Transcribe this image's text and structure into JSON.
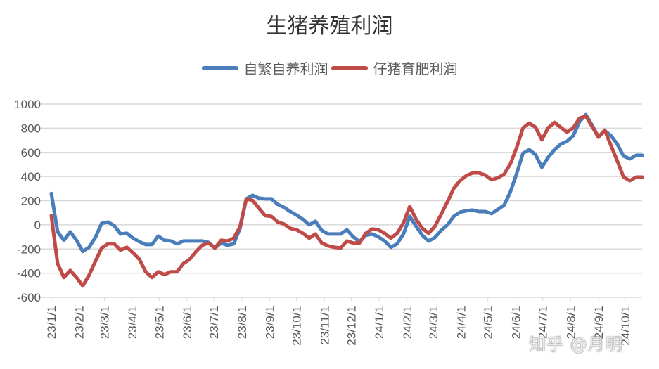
{
  "chart_data": {
    "type": "line",
    "title": "生猪养殖利润",
    "xlabel": "",
    "ylabel": "",
    "ylim": [
      -600,
      1000
    ],
    "yticks": [
      "1000",
      "800",
      "600",
      "400",
      "200",
      "0",
      "-200",
      "-400",
      "-600"
    ],
    "xticks": [
      "23/1/1",
      "23/2/1",
      "23/3/1",
      "23/4/1",
      "23/5/1",
      "23/6/1",
      "23/7/1",
      "23/8/1",
      "23/9/1",
      "23/10/1",
      "23/11/1",
      "23/12/1",
      "24/1/1",
      "24/2/1",
      "24/3/1",
      "24/4/1",
      "24/5/1",
      "24/6/1",
      "24/7/1",
      "24/8/1",
      "24/9/1",
      "24/10/1"
    ],
    "xtick_dates": [
      "2023-01-01",
      "2023-02-01",
      "2023-03-01",
      "2023-04-01",
      "2023-05-01",
      "2023-06-01",
      "2023-07-01",
      "2023-08-01",
      "2023-09-01",
      "2023-10-01",
      "2023-11-01",
      "2023-12-01",
      "2024-01-01",
      "2024-02-01",
      "2024-03-01",
      "2024-04-01",
      "2024-05-01",
      "2024-06-01",
      "2024-07-01",
      "2024-08-01",
      "2024-09-01",
      "2024-10-01"
    ],
    "grid": true,
    "legend_position": "top",
    "x": [
      "2023-01-01",
      "2023-01-08",
      "2023-01-15",
      "2023-01-22",
      "2023-01-29",
      "2023-02-05",
      "2023-02-12",
      "2023-02-19",
      "2023-02-26",
      "2023-03-05",
      "2023-03-12",
      "2023-03-19",
      "2023-03-26",
      "2023-04-02",
      "2023-04-09",
      "2023-04-16",
      "2023-04-23",
      "2023-04-30",
      "2023-05-07",
      "2023-05-14",
      "2023-05-21",
      "2023-05-28",
      "2023-06-04",
      "2023-06-11",
      "2023-06-18",
      "2023-06-25",
      "2023-07-02",
      "2023-07-09",
      "2023-07-16",
      "2023-07-23",
      "2023-07-30",
      "2023-08-06",
      "2023-08-13",
      "2023-08-20",
      "2023-08-27",
      "2023-09-03",
      "2023-09-10",
      "2023-09-17",
      "2023-09-24",
      "2023-10-01",
      "2023-10-08",
      "2023-10-15",
      "2023-10-22",
      "2023-10-29",
      "2023-11-05",
      "2023-11-12",
      "2023-11-19",
      "2023-11-26",
      "2023-12-03",
      "2023-12-10",
      "2023-12-17",
      "2023-12-24",
      "2023-12-31",
      "2024-01-07",
      "2024-01-14",
      "2024-01-21",
      "2024-01-28",
      "2024-02-04",
      "2024-02-11",
      "2024-02-18",
      "2024-02-25",
      "2024-03-03",
      "2024-03-10",
      "2024-03-17",
      "2024-03-24",
      "2024-03-31",
      "2024-04-07",
      "2024-04-14",
      "2024-04-21",
      "2024-04-28",
      "2024-05-05",
      "2024-05-12",
      "2024-05-19",
      "2024-05-26",
      "2024-06-02",
      "2024-06-09",
      "2024-06-16",
      "2024-06-23",
      "2024-06-30",
      "2024-07-07",
      "2024-07-14",
      "2024-07-21",
      "2024-07-28",
      "2024-08-04",
      "2024-08-11",
      "2024-08-18",
      "2024-08-25",
      "2024-09-01",
      "2024-09-08",
      "2024-09-15",
      "2024-09-22",
      "2024-09-29",
      "2024-10-06",
      "2024-10-13",
      "2024-10-20"
    ],
    "series": [
      {
        "name": "自繁自养利润",
        "color": "#4a7ebb",
        "values": [
          260,
          -58,
          -128,
          -58,
          -128,
          -220,
          -186,
          -105,
          12,
          23,
          -6,
          -76,
          -70,
          -110,
          -140,
          -163,
          -163,
          -93,
          -128,
          -134,
          -157,
          -134,
          -134,
          -134,
          -134,
          -145,
          -192,
          -151,
          -169,
          -157,
          -29,
          215,
          244,
          221,
          215,
          215,
          169,
          145,
          110,
          81,
          46,
          0,
          29,
          -46,
          -76,
          -76,
          -76,
          -41,
          -99,
          -140,
          -87,
          -76,
          -99,
          -134,
          -186,
          -157,
          -76,
          70,
          -12,
          -87,
          -134,
          -105,
          -46,
          0,
          70,
          105,
          116,
          122,
          110,
          110,
          93,
          128,
          163,
          273,
          424,
          593,
          622,
          581,
          476,
          558,
          622,
          668,
          691,
          738,
          854,
          912,
          825,
          726,
          779,
          738,
          668,
          569,
          546,
          575,
          575
        ]
      },
      {
        "name": "仔猪育肥利润",
        "color": "#be4b48",
        "values": [
          76,
          -320,
          -436,
          -378,
          -436,
          -505,
          -418,
          -302,
          -192,
          -157,
          -157,
          -209,
          -186,
          -232,
          -285,
          -389,
          -436,
          -389,
          -412,
          -389,
          -389,
          -320,
          -285,
          -221,
          -169,
          -151,
          -192,
          -128,
          -134,
          -110,
          -17,
          215,
          203,
          139,
          76,
          70,
          23,
          6,
          -29,
          -41,
          -70,
          -110,
          -76,
          -151,
          -174,
          -186,
          -192,
          -134,
          -151,
          -151,
          -70,
          -35,
          -41,
          -70,
          -110,
          -70,
          17,
          151,
          46,
          -29,
          -70,
          -12,
          87,
          192,
          302,
          366,
          407,
          430,
          430,
          412,
          372,
          389,
          418,
          505,
          639,
          802,
          842,
          808,
          703,
          802,
          848,
          808,
          767,
          802,
          883,
          900,
          813,
          726,
          784,
          656,
          529,
          395,
          366,
          395,
          395
        ]
      }
    ]
  },
  "watermark": "知乎 @月明"
}
